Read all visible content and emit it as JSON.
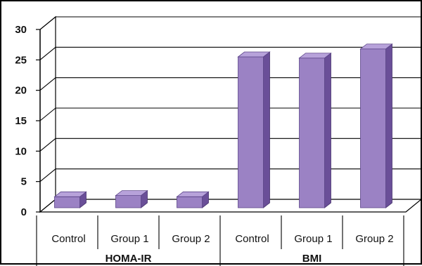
{
  "chart_data": {
    "type": "bar",
    "style": "3d-column",
    "groups": [
      {
        "label": "HOMA-IR",
        "categories": [
          "Control",
          "Group 1",
          "Group 2"
        ],
        "values": [
          2.5,
          2.7,
          2.5
        ]
      },
      {
        "label": "BMI",
        "categories": [
          "Control",
          "Group 1",
          "Group 2"
        ],
        "values": [
          25.5,
          25.3,
          26.8
        ]
      }
    ],
    "yticks": [
      0,
      5,
      10,
      15,
      20,
      25,
      30
    ],
    "ylim": [
      0,
      30
    ],
    "grid": true,
    "colors": {
      "bar_front": "#9b82c4",
      "bar_side": "#6a4f98",
      "bar_top": "#b7a2da",
      "grid": "#000000"
    }
  }
}
